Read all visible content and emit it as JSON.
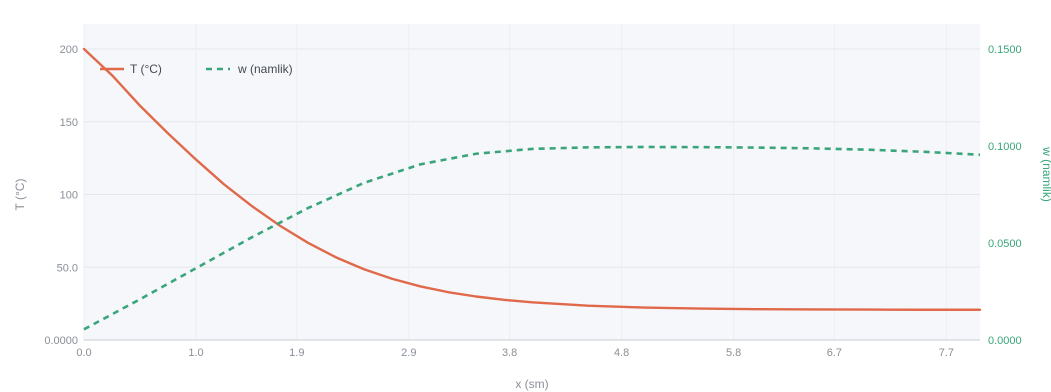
{
  "chart_data": {
    "type": "line",
    "title": "",
    "xlabel": "x (sm)",
    "ylabel_left": "T (°C)",
    "ylabel_right": "w (namlik)",
    "xlim": [
      0,
      8.0
    ],
    "ylim_left": [
      0,
      200
    ],
    "ylim_right": [
      0,
      0.15
    ],
    "x_ticks": [
      "0.0",
      "1.0",
      "1.9",
      "2.9",
      "3.8",
      "4.8",
      "5.8",
      "6.7",
      "7.7"
    ],
    "y_left_ticks": [
      "0.0000",
      "50.0",
      "100",
      "150",
      "200"
    ],
    "y_right_ticks": [
      "0.0000",
      "0.0500",
      "0.1000",
      "0.1500"
    ],
    "grid": true,
    "legend_position": "top-left",
    "series": [
      {
        "name": "T (°C)",
        "axis": "left",
        "color": "#e0694a",
        "style": "solid",
        "x": [
          0.0,
          0.25,
          0.5,
          0.75,
          1.0,
          1.25,
          1.5,
          1.75,
          2.0,
          2.25,
          2.5,
          2.75,
          3.0,
          3.25,
          3.5,
          3.75,
          4.0,
          4.5,
          5.0,
          5.5,
          6.0,
          6.5,
          7.0,
          7.5,
          8.0
        ],
        "y": [
          200,
          182,
          161,
          142,
          124,
          107,
          92,
          78.5,
          66.8,
          56.8,
          48.6,
          42.1,
          36.9,
          32.9,
          29.9,
          27.6,
          25.9,
          23.6,
          22.3,
          21.6,
          21.2,
          21.0,
          20.9,
          20.8,
          20.8
        ]
      },
      {
        "name": "w (namlik)",
        "axis": "right",
        "color": "#3aa57a",
        "style": "dashed",
        "x": [
          0.0,
          0.5,
          1.0,
          1.5,
          2.0,
          2.5,
          3.0,
          3.5,
          4.0,
          4.5,
          5.0,
          5.5,
          6.0,
          6.5,
          7.0,
          7.5,
          8.0
        ],
        "y": [
          0.0055,
          0.021,
          0.037,
          0.053,
          0.068,
          0.081,
          0.0905,
          0.096,
          0.0985,
          0.0993,
          0.0995,
          0.0994,
          0.0992,
          0.0988,
          0.0981,
          0.097,
          0.0955
        ]
      }
    ]
  }
}
